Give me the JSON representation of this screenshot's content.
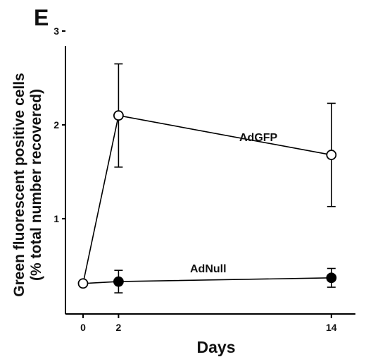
{
  "panel_label": "E",
  "chart_data": {
    "type": "line",
    "xlabel": "Days",
    "ylabel": "Green fluorescent positive cells",
    "ylabel_sub": "(% total number recovered)",
    "x_ticks": [
      "0",
      "2",
      "14"
    ],
    "y_ticks": [
      "1",
      "2",
      "3"
    ],
    "xlim": [
      -1,
      16.5
    ],
    "ylim": [
      0,
      3
    ],
    "grid": false,
    "series": [
      {
        "name": "AdGFP",
        "marker": "open-circle",
        "color": "#000000",
        "points": [
          {
            "x": 0,
            "y": 0.31,
            "err": 0
          },
          {
            "x": 2,
            "y": 2.1,
            "err": 0.55
          },
          {
            "x": 14,
            "y": 1.68,
            "err": 0.55
          }
        ]
      },
      {
        "name": "AdNull",
        "marker": "filled-circle",
        "color": "#000000",
        "points": [
          {
            "x": 0,
            "y": 0.31,
            "err": 0
          },
          {
            "x": 2,
            "y": 0.33,
            "err": 0.12
          },
          {
            "x": 14,
            "y": 0.37,
            "err": 0.1
          }
        ]
      }
    ]
  }
}
